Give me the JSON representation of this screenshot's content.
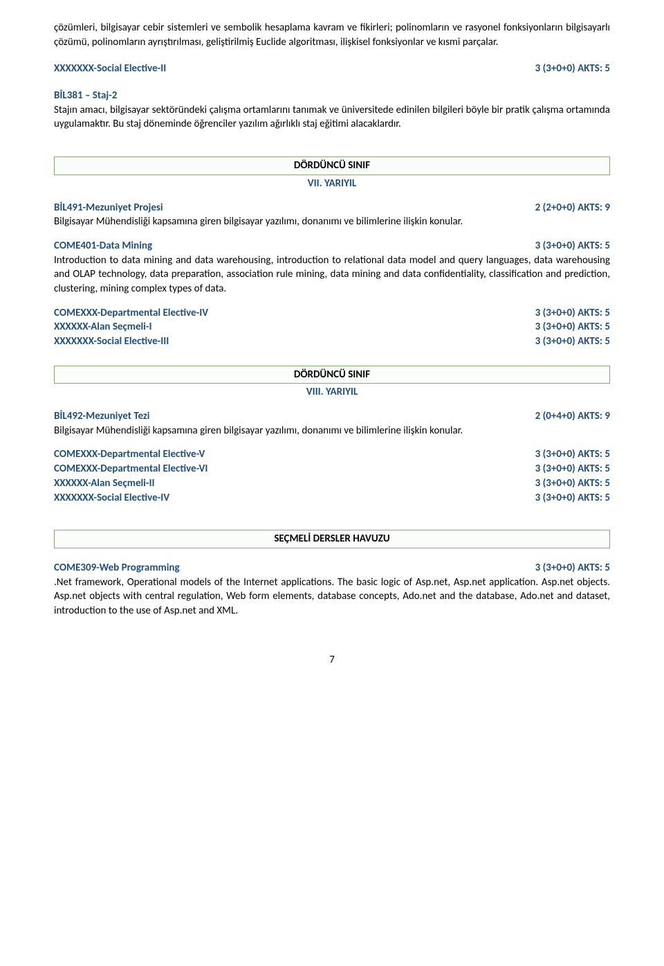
{
  "colors": {
    "blue": "#1f4e79",
    "box_border": "#8aa870",
    "text": "#000000",
    "background": "#ffffff"
  },
  "intro_continuation": "çözümleri, bilgisayar cebir sistemleri ve sembolik hesaplama kavram ve fikirleri; polinomların ve rasyonel fonksiyonların bilgisayarlı çözümü, polinomların ayrıştırılması, geliştirilmiş Euclide algoritması, ilişkisel fonksiyonlar ve kısmi parçalar.",
  "xx_social_ii": {
    "title": "XXXXXXX-Social Elective-II",
    "credits": "3 (3+0+0) AKTS: 5"
  },
  "bil381": {
    "title": "BİL381 – Staj-2",
    "desc": "Stajın amacı, bilgisayar sektöründeki çalışma ortamlarını tanımak ve üniversitede edinilen bilgileri böyle bir pratik çalışma ortamında uygulamaktır. Bu staj döneminde öğrenciler yazılım ağırlıklı staj eğitimi alacaklardır."
  },
  "section4a": {
    "heading": "DÖRDÜNCÜ SINIF",
    "sub": "VII. YARIYIL"
  },
  "bil491": {
    "title": "BİL491-Mezuniyet Projesi",
    "credits": "2 (2+0+0) AKTS: 9",
    "desc": "Bilgisayar Mühendisliği kapsamına giren bilgisayar yazılımı, donanımı ve bilimlerine ilişkin konular."
  },
  "come401": {
    "title": "COME401-Data Mining",
    "credits": "3 (3+0+0) AKTS: 5",
    "desc": "Introduction to data mining and data warehousing, introduction to relational data model and query languages, data warehousing and OLAP technology, data preparation, association rule mining, data mining and data confidentiality, classification and prediction, clustering, mining complex types of data."
  },
  "elec7": {
    "a_title": "COMEXXX-Departmental Elective-IV",
    "a_credits": "3 (3+0+0) AKTS: 5",
    "b_title": "XXXXXX-Alan Seçmeli-I",
    "b_credits": "3 (3+0+0) AKTS: 5",
    "c_title": "XXXXXXX-Social Elective-III",
    "c_credits": "3 (3+0+0) AKTS: 5"
  },
  "section4b": {
    "heading": "DÖRDÜNCÜ SINIF",
    "sub": "VIII. YARIYIL"
  },
  "bil492": {
    "title": "BİL492-Mezuniyet Tezi",
    "credits": "2 (0+4+0) AKTS: 9",
    "desc": "Bilgisayar Mühendisliği kapsamına giren bilgisayar yazılımı, donanımı ve bilimlerine ilişkin konular."
  },
  "elec8": {
    "a_title": "COMEXXX-Departmental Elective-V",
    "a_credits": "3 (3+0+0) AKTS: 5",
    "b_title": "COMEXXX-Departmental Elective-VI",
    "b_credits": "3 (3+0+0) AKTS: 5",
    "c_title": "XXXXXX-Alan Seçmeli-II",
    "c_credits": "3 (3+0+0) AKTS: 5",
    "d_title": "XXXXXXX-Social Elective-IV",
    "d_credits": "3 (3+0+0) AKTS: 5"
  },
  "pool": {
    "heading": "SEÇMELİ DERSLER HAVUZU"
  },
  "come309": {
    "title": "COME309-Web Programming",
    "credits": "3 (3+0+0) AKTS: 5",
    "desc": ".Net framework, Operational models of the Internet applications. The basic logic of Asp.net, Asp.net application. Asp.net objects. Asp.net objects with central regulation, Web form elements, database concepts,  Ado.net and the database, Ado.net and dataset, introduction to the use of Asp.net and XML."
  },
  "page_number": "7"
}
